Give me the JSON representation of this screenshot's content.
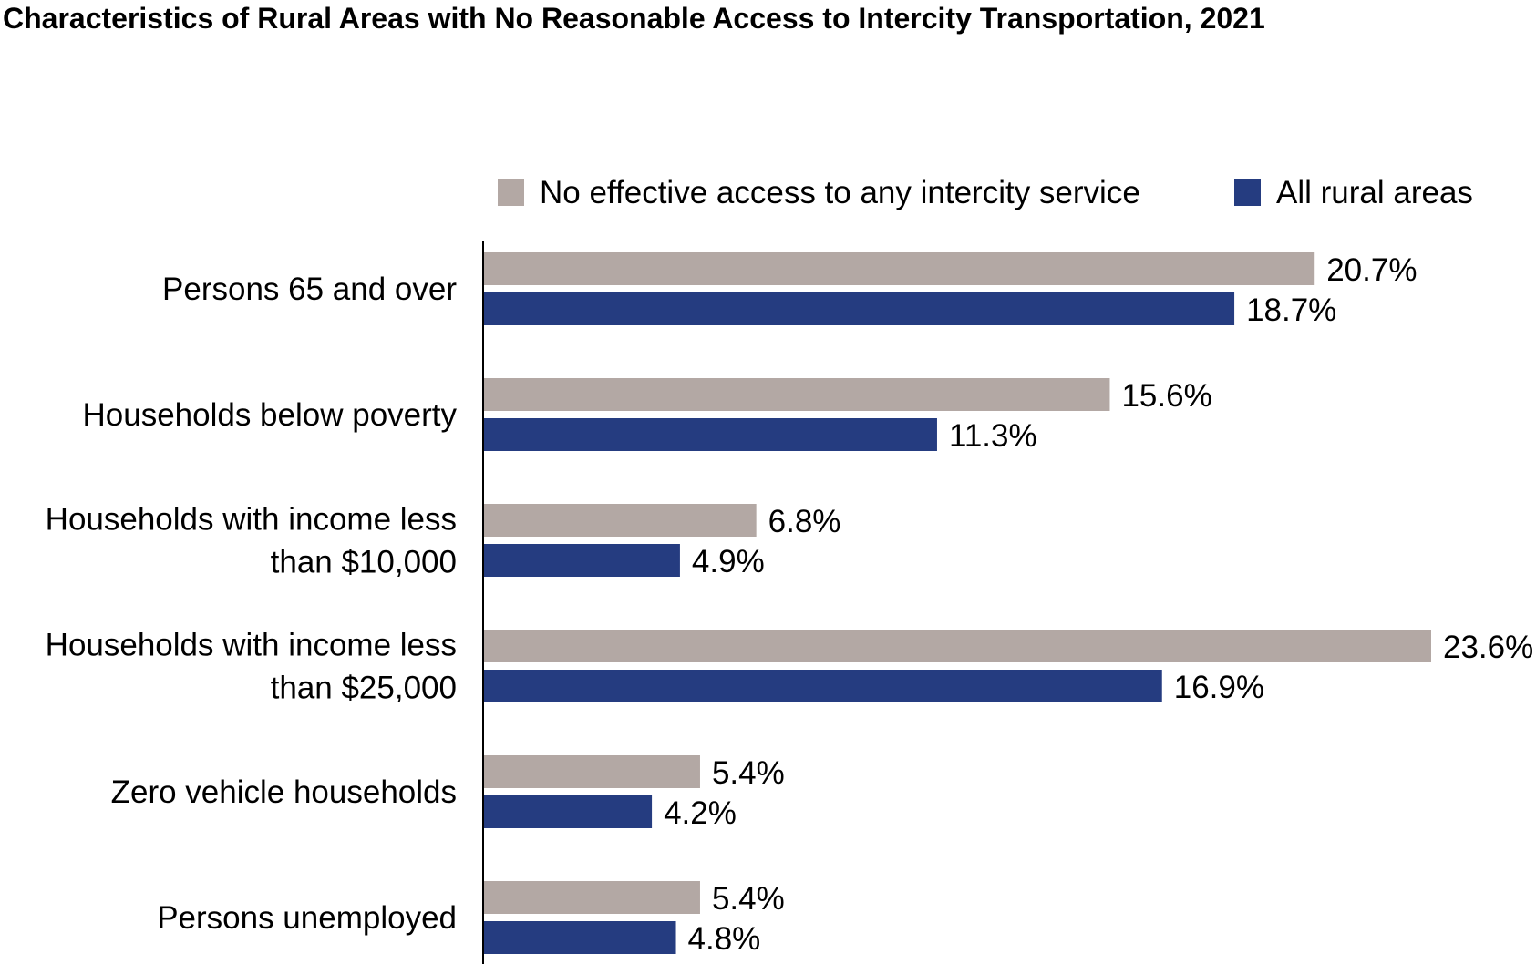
{
  "chart_data": {
    "type": "bar",
    "orientation": "horizontal",
    "title": "Characteristics of Rural Areas with No Reasonable Access to Intercity Transportation, 2021",
    "categories": [
      [
        "Persons 65 and over"
      ],
      [
        "Households below poverty"
      ],
      [
        "Households with income less",
        "than $10,000"
      ],
      [
        "Households with income less",
        "than $25,000"
      ],
      [
        "Zero vehicle households"
      ],
      [
        "Persons unemployed"
      ]
    ],
    "series": [
      {
        "name": "No effective access to any intercity service",
        "color": "#b3a8a4",
        "values": [
          20.7,
          15.6,
          6.8,
          23.6,
          5.4,
          5.4
        ],
        "labels": [
          "20.7%",
          "15.6%",
          "6.8%",
          "23.6%",
          "5.4%",
          "5.4%"
        ]
      },
      {
        "name": "All rural areas",
        "color": "#253c80",
        "values": [
          18.7,
          11.3,
          4.9,
          16.9,
          4.2,
          4.8
        ],
        "labels": [
          "18.7%",
          "11.3%",
          "4.9%",
          "16.9%",
          "4.2%",
          "4.8%"
        ]
      }
    ],
    "xlim": [
      0,
      23.6
    ],
    "unit": "%",
    "grid": false,
    "legend_position": "top-right"
  }
}
